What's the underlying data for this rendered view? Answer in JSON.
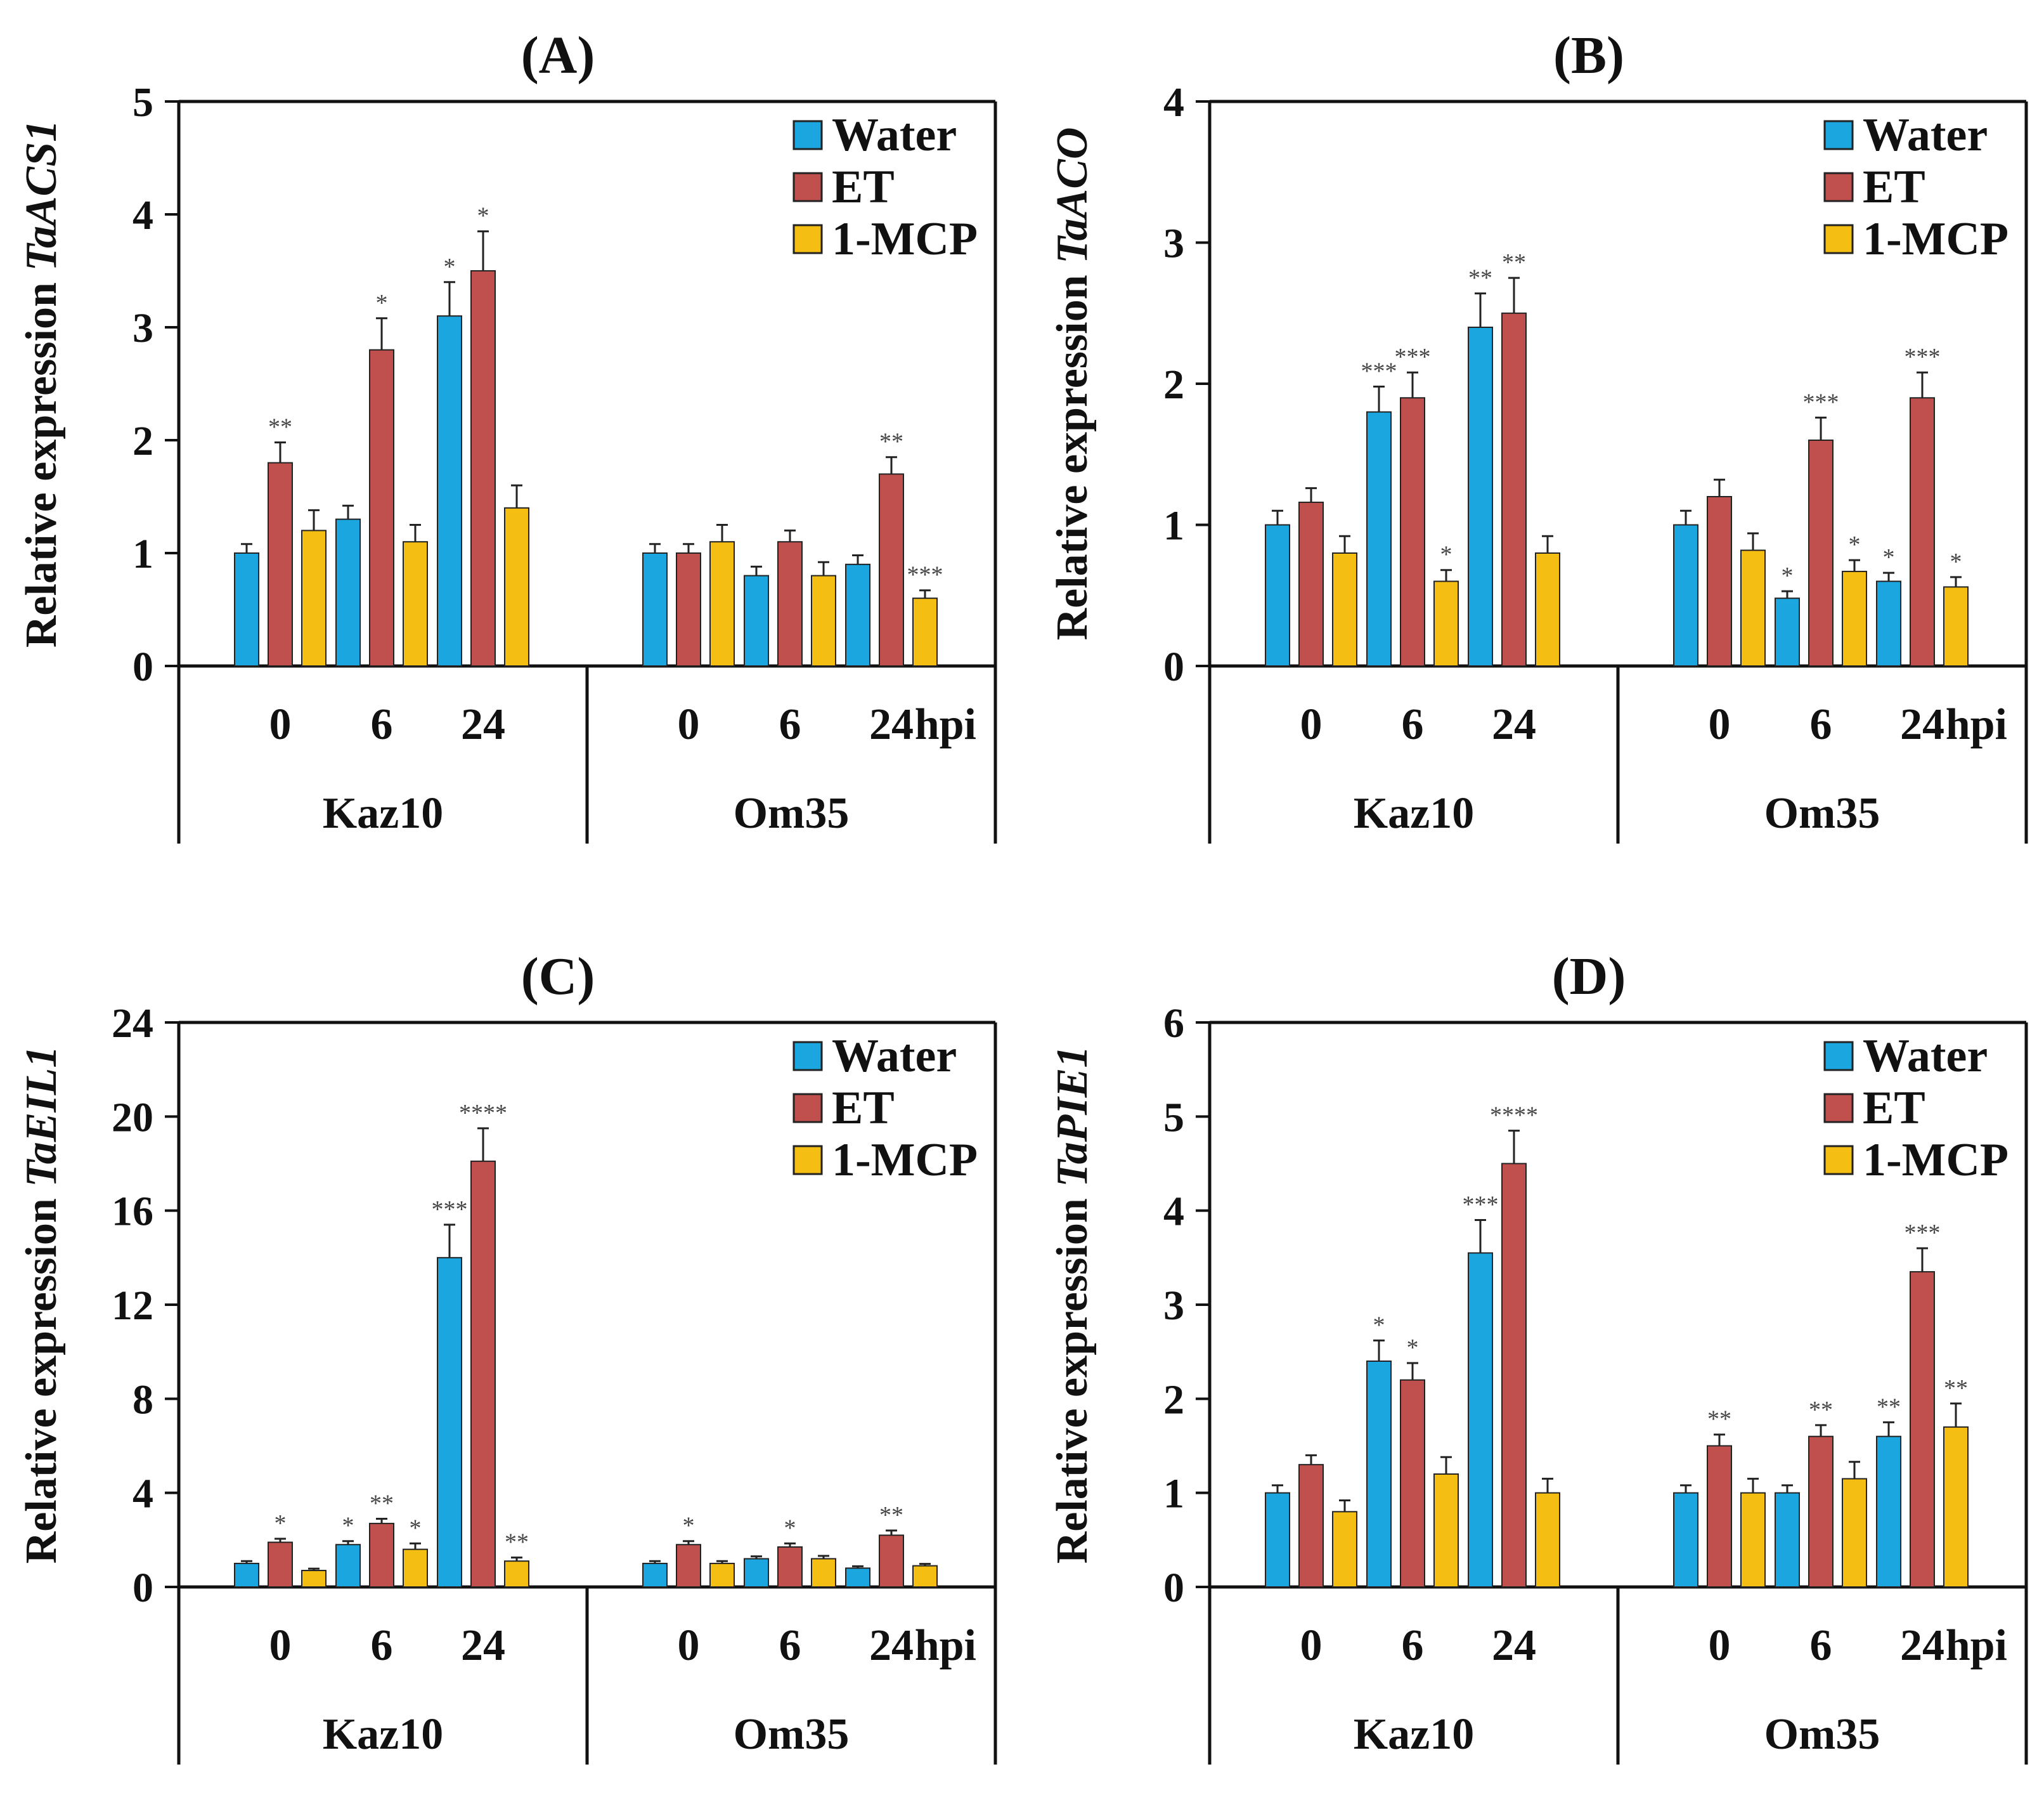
{
  "colors": {
    "water": "#1BA6E0",
    "et": "#C0504D",
    "mcp": "#F5BE12",
    "axis": "#111111"
  },
  "chart_data": [
    {
      "id": "A",
      "type": "bar",
      "title": "(A)",
      "ylabel": "Relative expression",
      "gene": "TaACS1",
      "ylim": [
        0,
        5
      ],
      "yticks": [
        "0",
        "1",
        "2",
        "3",
        "4",
        "5"
      ],
      "time_labels": [
        "0",
        "6",
        "24"
      ],
      "time_unit": "hpi",
      "groups": [
        "Kaz10",
        "Om35"
      ],
      "legend": [
        "Water",
        "ET",
        "1-MCP"
      ],
      "series": [
        {
          "name": "Water",
          "values": [
            [
              1.0,
              1.3,
              3.1
            ],
            [
              1.0,
              0.8,
              0.9
            ]
          ],
          "errors": [
            [
              0.08,
              0.12,
              0.3
            ],
            [
              0.08,
              0.08,
              0.08
            ]
          ],
          "sig": [
            [
              "",
              "",
              "*"
            ],
            [
              "",
              "",
              ""
            ]
          ]
        },
        {
          "name": "ET",
          "values": [
            [
              1.8,
              2.8,
              3.5
            ],
            [
              1.0,
              1.1,
              1.7
            ]
          ],
          "errors": [
            [
              0.18,
              0.28,
              0.35
            ],
            [
              0.08,
              0.1,
              0.15
            ]
          ],
          "sig": [
            [
              "**",
              "*",
              "*"
            ],
            [
              "",
              "",
              "**"
            ]
          ]
        },
        {
          "name": "1-MCP",
          "values": [
            [
              1.2,
              1.1,
              1.4
            ],
            [
              1.1,
              0.8,
              0.6
            ]
          ],
          "errors": [
            [
              0.18,
              0.15,
              0.2
            ],
            [
              0.15,
              0.12,
              0.07
            ]
          ],
          "sig": [
            [
              "",
              "",
              ""
            ],
            [
              "",
              "",
              "***"
            ]
          ]
        }
      ]
    },
    {
      "id": "B",
      "type": "bar",
      "title": "(B)",
      "ylabel": "Relative expression",
      "gene": "TaACO",
      "ylim": [
        0,
        4
      ],
      "yticks": [
        "0",
        "1",
        "2",
        "3",
        "4"
      ],
      "time_labels": [
        "0",
        "6",
        "24"
      ],
      "time_unit": "hpi",
      "groups": [
        "Kaz10",
        "Om35"
      ],
      "legend": [
        "Water",
        "ET",
        "1-MCP"
      ],
      "series": [
        {
          "name": "Water",
          "values": [
            [
              1.0,
              1.8,
              2.4
            ],
            [
              1.0,
              0.48,
              0.6
            ]
          ],
          "errors": [
            [
              0.1,
              0.18,
              0.24
            ],
            [
              0.1,
              0.05,
              0.06
            ]
          ],
          "sig": [
            [
              "",
              "***",
              "**"
            ],
            [
              "",
              "*",
              "*"
            ]
          ]
        },
        {
          "name": "ET",
          "values": [
            [
              1.16,
              1.9,
              2.5
            ],
            [
              1.2,
              1.6,
              1.9
            ]
          ],
          "errors": [
            [
              0.1,
              0.18,
              0.25
            ],
            [
              0.12,
              0.16,
              0.18
            ]
          ],
          "sig": [
            [
              "",
              "***",
              "**"
            ],
            [
              "",
              "***",
              "***"
            ]
          ]
        },
        {
          "name": "1-MCP",
          "values": [
            [
              0.8,
              0.6,
              0.8
            ],
            [
              0.82,
              0.67,
              0.56
            ]
          ],
          "errors": [
            [
              0.12,
              0.08,
              0.12
            ],
            [
              0.12,
              0.08,
              0.07
            ]
          ],
          "sig": [
            [
              "",
              "*",
              ""
            ],
            [
              "",
              "*",
              "*"
            ]
          ]
        }
      ]
    },
    {
      "id": "C",
      "type": "bar",
      "title": "(C)",
      "ylabel": "Relative expression",
      "gene": "TaEIL1",
      "ylim": [
        0,
        24
      ],
      "yticks": [
        "0",
        "4",
        "8",
        "12",
        "16",
        "20",
        "24"
      ],
      "time_labels": [
        "0",
        "6",
        "24"
      ],
      "time_unit": "hpi",
      "groups": [
        "Kaz10",
        "Om35"
      ],
      "legend": [
        "Water",
        "ET",
        "1-MCP"
      ],
      "series": [
        {
          "name": "Water",
          "values": [
            [
              1.0,
              1.8,
              14.0
            ],
            [
              1.0,
              1.2,
              0.8
            ]
          ],
          "errors": [
            [
              0.1,
              0.15,
              1.4
            ],
            [
              0.1,
              0.1,
              0.08
            ]
          ],
          "sig": [
            [
              "",
              "*",
              "***"
            ],
            [
              "",
              "",
              ""
            ]
          ]
        },
        {
          "name": "ET",
          "values": [
            [
              1.9,
              2.7,
              18.1
            ],
            [
              1.8,
              1.7,
              2.2
            ]
          ],
          "errors": [
            [
              0.15,
              0.2,
              1.4
            ],
            [
              0.15,
              0.15,
              0.2
            ]
          ],
          "sig": [
            [
              "*",
              "**",
              "****"
            ],
            [
              "*",
              "*",
              "**"
            ]
          ]
        },
        {
          "name": "1-MCP",
          "values": [
            [
              0.7,
              1.6,
              1.1
            ],
            [
              1.0,
              1.2,
              0.9
            ]
          ],
          "errors": [
            [
              0.08,
              0.25,
              0.15
            ],
            [
              0.1,
              0.12,
              0.08
            ]
          ],
          "sig": [
            [
              "",
              "*",
              "**"
            ],
            [
              "",
              "",
              ""
            ]
          ]
        }
      ]
    },
    {
      "id": "D",
      "type": "bar",
      "title": "(D)",
      "ylabel": "Relative expression",
      "gene": "TaPIE1",
      "ylim": [
        0,
        6
      ],
      "yticks": [
        "0",
        "1",
        "2",
        "3",
        "4",
        "5",
        "6"
      ],
      "time_labels": [
        "0",
        "6",
        "24"
      ],
      "time_unit": "hpi",
      "groups": [
        "Kaz10",
        "Om35"
      ],
      "legend": [
        "Water",
        "ET",
        "1-MCP"
      ],
      "series": [
        {
          "name": "Water",
          "values": [
            [
              1.0,
              2.4,
              3.55
            ],
            [
              1.0,
              1.0,
              1.6
            ]
          ],
          "errors": [
            [
              0.08,
              0.22,
              0.35
            ],
            [
              0.08,
              0.08,
              0.15
            ]
          ],
          "sig": [
            [
              "",
              "*",
              "***"
            ],
            [
              "",
              "",
              "**"
            ]
          ]
        },
        {
          "name": "ET",
          "values": [
            [
              1.3,
              2.2,
              4.5
            ],
            [
              1.5,
              1.6,
              3.35
            ]
          ],
          "errors": [
            [
              0.1,
              0.18,
              0.35
            ],
            [
              0.12,
              0.12,
              0.25
            ]
          ],
          "sig": [
            [
              "",
              "*",
              "****"
            ],
            [
              "**",
              "**",
              "***"
            ]
          ]
        },
        {
          "name": "1-MCP",
          "values": [
            [
              0.8,
              1.2,
              1.0
            ],
            [
              1.0,
              1.15,
              1.7
            ]
          ],
          "errors": [
            [
              0.12,
              0.18,
              0.15
            ],
            [
              0.15,
              0.18,
              0.25
            ]
          ],
          "sig": [
            [
              "",
              "",
              ""
            ],
            [
              "",
              "",
              "**"
            ]
          ]
        }
      ]
    }
  ]
}
